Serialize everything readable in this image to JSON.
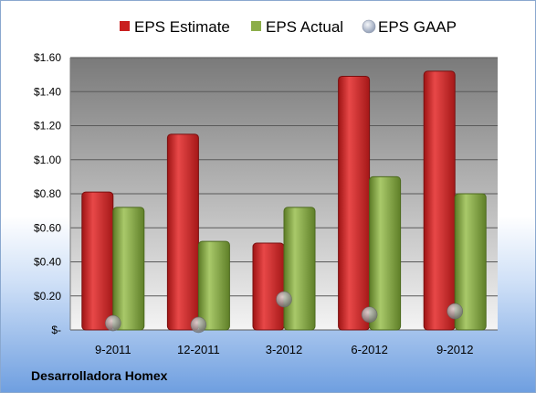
{
  "company": "Desarrolladora Homex",
  "chart_data": {
    "type": "bar",
    "categories": [
      "9-2011",
      "12-2011",
      "3-2012",
      "6-2012",
      "9-2012"
    ],
    "series": [
      {
        "name": "EPS Estimate",
        "values": [
          0.81,
          1.15,
          0.51,
          1.49,
          1.52
        ],
        "color": "#d42a2a",
        "kind": "bar"
      },
      {
        "name": "EPS Actual",
        "values": [
          0.72,
          0.52,
          0.72,
          0.9,
          0.8
        ],
        "color": "#8cae4a",
        "kind": "bar"
      },
      {
        "name": "EPS GAAP",
        "values": [
          0.04,
          0.03,
          0.18,
          0.09,
          0.11
        ],
        "color": "#aab4c8",
        "kind": "marker"
      }
    ],
    "ylim": [
      0,
      1.6
    ],
    "yticks": [
      0,
      0.2,
      0.4,
      0.6,
      0.8,
      1.0,
      1.2,
      1.4,
      1.6
    ],
    "ytick_labels": [
      "$-",
      "$0.20",
      "$0.40",
      "$0.60",
      "$0.80",
      "$1.00",
      "$1.20",
      "$1.40",
      "$1.60"
    ],
    "grid": true,
    "legend_position": "top"
  }
}
